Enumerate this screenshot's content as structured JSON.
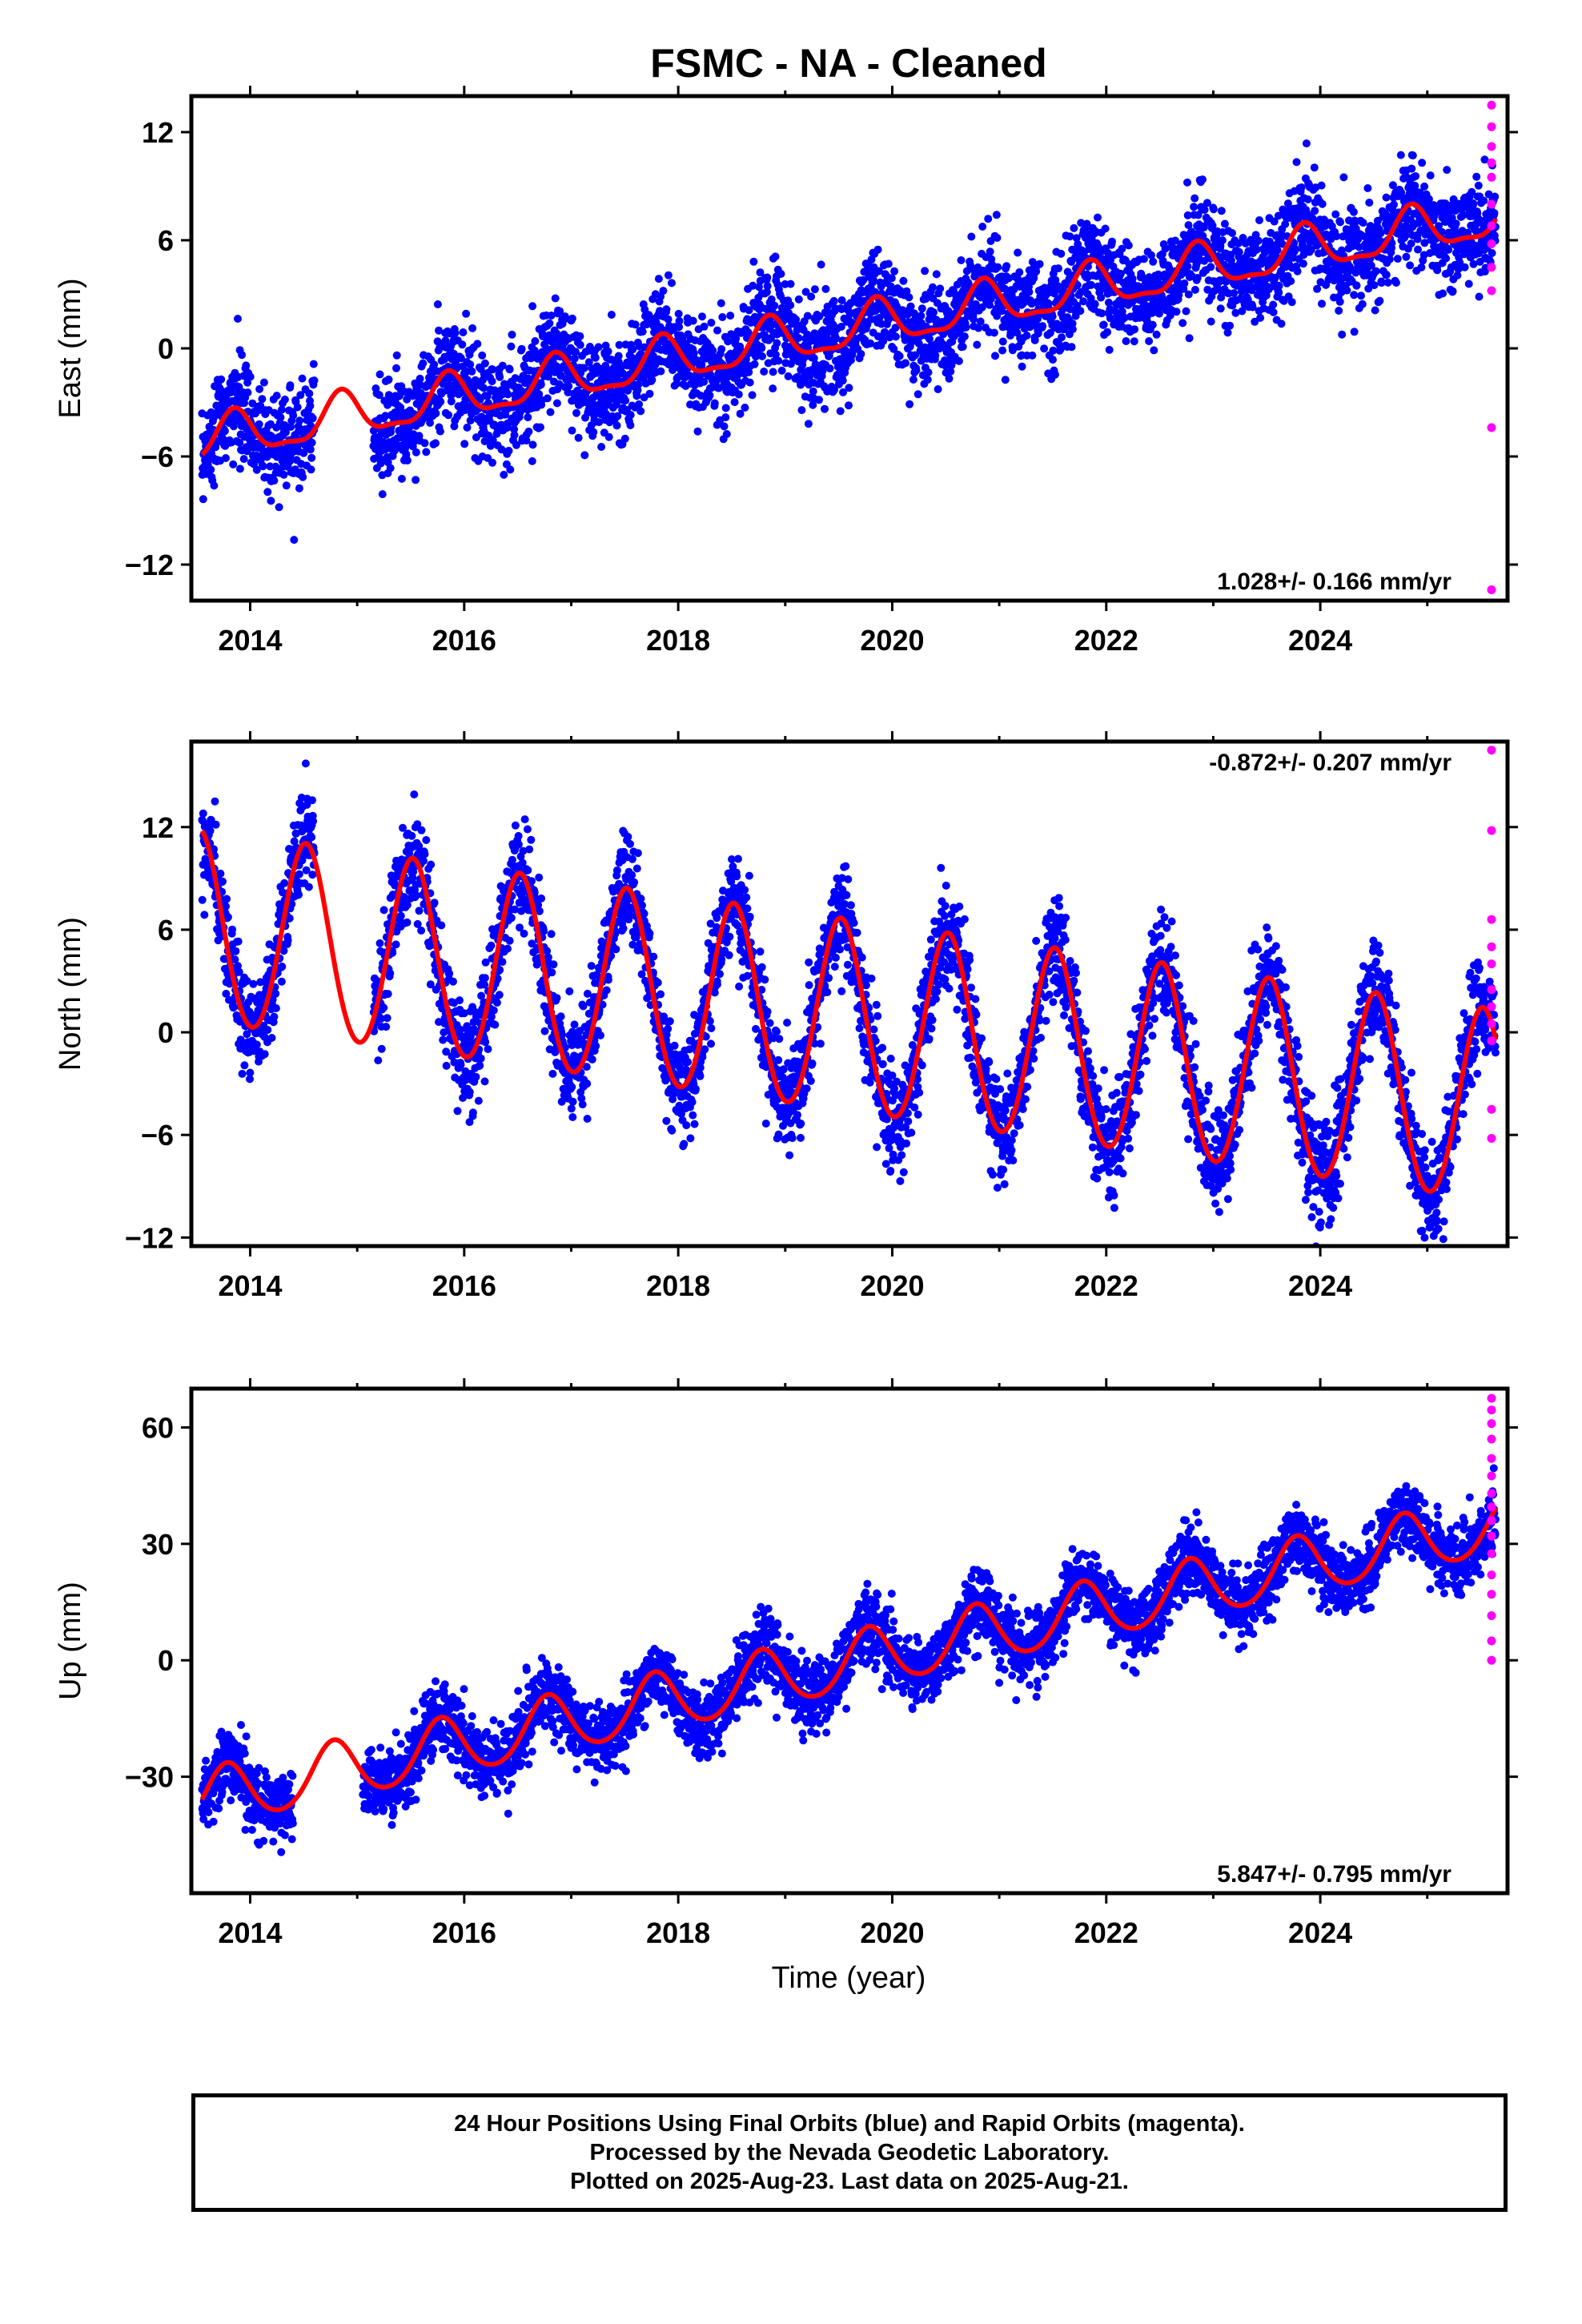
{
  "title": "FSMC  - NA - Cleaned",
  "xlabel": "Time (year)",
  "footer": {
    "line1": "24 Hour Positions Using Final Orbits (blue) and Rapid Orbits (magenta).",
    "line2": "Processed by the Nevada Geodetic Laboratory.",
    "line3": "Plotted on 2025-Aug-23. Last data on 2025-Aug-21."
  },
  "colors": {
    "final": "#0000ff",
    "rapid": "#ff00ff",
    "model": "#ff0000",
    "frame": "#000000"
  },
  "chart_data": [
    {
      "type": "scatter",
      "ylabel": "East (mm)",
      "rate": "1.028+/- 0.166 mm/yr",
      "rate_position": "bottom-right",
      "xlim": [
        2013.45,
        2025.75
      ],
      "ylim": [
        -14,
        14
      ],
      "xticks": [
        2014,
        2016,
        2018,
        2020,
        2022,
        2024
      ],
      "yticks": [
        -12,
        -6,
        0,
        6,
        12
      ],
      "model": {
        "t0": 2013.55,
        "y0": -5.2,
        "rate": 1.028,
        "amp_annual": 1.2,
        "phase_peak": 0.85,
        "amp_semiannual": 0.4,
        "scatter_sd": 1.4
      },
      "gaps": [
        [
          2014.6,
          2015.15
        ]
      ],
      "rapid_points": [
        [
          2025.6,
          13.5
        ],
        [
          2025.6,
          12.3
        ],
        [
          2025.6,
          11.2
        ],
        [
          2025.6,
          10.3
        ],
        [
          2025.6,
          9.5
        ],
        [
          2025.6,
          8.0
        ],
        [
          2025.6,
          6.8
        ],
        [
          2025.6,
          5.8
        ],
        [
          2025.6,
          4.5
        ],
        [
          2025.6,
          3.2
        ],
        [
          2025.6,
          -4.4
        ],
        [
          2025.6,
          -13.4
        ]
      ]
    },
    {
      "type": "scatter",
      "ylabel": "North (mm)",
      "rate": "-0.872+/- 0.207 mm/yr",
      "rate_position": "top-right",
      "xlim": [
        2013.45,
        2025.75
      ],
      "ylim": [
        -12.5,
        17
      ],
      "xticks": [
        2014,
        2016,
        2018,
        2020,
        2022,
        2024
      ],
      "yticks": [
        -12,
        -6,
        0,
        6,
        12
      ],
      "model": {
        "t0": 2013.55,
        "y0": 6.0,
        "rate": -0.872,
        "amp_annual": 5.6,
        "phase_peak": 0.52,
        "amp_semiannual": 0.3,
        "scatter_sd": 1.5
      },
      "gaps": [
        [
          2014.6,
          2015.15
        ]
      ],
      "rapid_points": [
        [
          2025.6,
          16.5
        ],
        [
          2025.6,
          11.8
        ],
        [
          2025.6,
          6.6
        ],
        [
          2025.6,
          5.0
        ],
        [
          2025.6,
          4.0
        ],
        [
          2025.6,
          2.5
        ],
        [
          2025.6,
          1.5
        ],
        [
          2025.6,
          0.5
        ],
        [
          2025.6,
          -0.5
        ],
        [
          2025.6,
          -4.5
        ],
        [
          2025.6,
          -6.2
        ]
      ]
    },
    {
      "type": "scatter",
      "ylabel": "Up (mm)",
      "rate": "5.847+/- 0.795 mm/yr",
      "rate_position": "bottom-right",
      "xlim": [
        2013.45,
        2025.75
      ],
      "ylim": [
        -60,
        70
      ],
      "xticks": [
        2014,
        2016,
        2018,
        2020,
        2022,
        2024
      ],
      "yticks": [
        -30,
        0,
        30,
        60
      ],
      "model": {
        "t0": 2013.55,
        "y0": -36.0,
        "rate": 5.847,
        "amp_annual": 7.5,
        "phase_peak": 0.78,
        "amp_semiannual": 0.8,
        "scatter_sd": 4.5
      },
      "gaps": [
        [
          2014.4,
          2015.05
        ]
      ],
      "rapid_points": [
        [
          2025.6,
          67.5
        ],
        [
          2025.6,
          64.5
        ],
        [
          2025.6,
          61.0
        ],
        [
          2025.6,
          57.0
        ],
        [
          2025.6,
          52.0
        ],
        [
          2025.6,
          47.5
        ],
        [
          2025.6,
          43.0
        ],
        [
          2025.6,
          39.5
        ],
        [
          2025.6,
          36.0
        ],
        [
          2025.6,
          32.0
        ],
        [
          2025.6,
          27.5
        ],
        [
          2025.6,
          22.0
        ],
        [
          2025.6,
          17.0
        ],
        [
          2025.6,
          11.5
        ],
        [
          2025.6,
          5.0
        ],
        [
          2025.6,
          0.0
        ]
      ]
    }
  ]
}
